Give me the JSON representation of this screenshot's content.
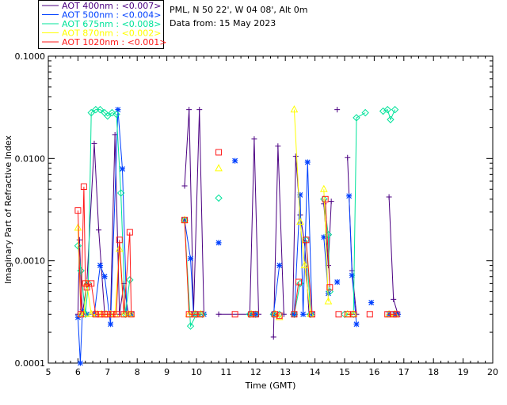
{
  "chart_data": {
    "type": "scatter",
    "header": {
      "site": "PML, N 50 22', W 04 08', Alt 0m",
      "date": "Data from: 15 May 2023"
    },
    "xlabel": "Time (GMT)",
    "ylabel": "Imaginary Part of Refractive Index",
    "xlim": [
      5,
      20
    ],
    "ylim": [
      0.0001,
      0.1
    ],
    "yscale": "log",
    "x_ticks": [
      "5",
      "6",
      "7",
      "8",
      "9",
      "10",
      "11",
      "12",
      "13",
      "14",
      "15",
      "16",
      "17",
      "18",
      "19",
      "20"
    ],
    "y_ticks": [
      "0.0001",
      "0.0010",
      "0.0100",
      "0.1000"
    ],
    "legend_position": "top-left, outside plot",
    "series": [
      {
        "name": "AOT  400nm : <0.007>",
        "color": "#4b0082",
        "marker": "plus",
        "segments": [
          [
            [
              6.0,
              0.0003
            ],
            [
              6.05,
              0.0016
            ],
            [
              6.15,
              0.0003
            ],
            [
              6.3,
              0.0006
            ],
            [
              6.55,
              0.014
            ],
            [
              6.7,
              0.002
            ],
            [
              6.9,
              0.0003
            ],
            [
              7.1,
              0.0003
            ],
            [
              7.25,
              0.017
            ],
            [
              7.4,
              0.0003
            ],
            [
              7.55,
              0.0006
            ],
            [
              7.7,
              0.0003
            ],
            [
              7.8,
              0.0003
            ]
          ],
          [
            [
              9.6,
              0.0054
            ],
            [
              9.75,
              0.03
            ],
            [
              9.9,
              0.0003
            ],
            [
              10.1,
              0.03
            ],
            [
              10.25,
              0.0003
            ]
          ],
          [
            [
              10.75,
              0.0003
            ],
            [
              11.8,
              0.0003
            ],
            [
              11.95,
              0.0155
            ],
            [
              12.1,
              0.0003
            ]
          ],
          [
            [
              12.6,
              0.00018
            ],
            [
              12.75,
              0.0132
            ],
            [
              12.95,
              0.0003
            ]
          ],
          [
            [
              13.25,
              0.0003
            ],
            [
              13.35,
              0.0105
            ],
            [
              13.5,
              0.0028
            ],
            [
              13.65,
              0.0015
            ],
            [
              13.8,
              0.0003
            ]
          ],
          [
            [
              14.3,
              0.0036
            ],
            [
              14.45,
              0.0009
            ],
            [
              14.55,
              0.0038
            ]
          ],
          [
            [
              14.75,
              0.03
            ]
          ],
          [
            [
              15.1,
              0.0102
            ],
            [
              15.25,
              0.0008
            ],
            [
              15.4,
              0.0003
            ]
          ],
          [
            [
              16.5,
              0.0042
            ],
            [
              16.65,
              0.00042
            ],
            [
              16.8,
              0.0003
            ]
          ]
        ]
      },
      {
        "name": "AOT  500nm : <0.004>",
        "color": "#0040ff",
        "marker": "star",
        "segments": [
          [
            [
              6.0,
              0.00028
            ],
            [
              6.08,
              0.0001
            ],
            [
              6.15,
              0.00032
            ],
            [
              6.3,
              0.0003
            ],
            [
              6.55,
              0.0003
            ],
            [
              6.75,
              0.0009
            ],
            [
              6.9,
              0.0007
            ],
            [
              7.1,
              0.00024
            ],
            [
              7.35,
              0.03
            ],
            [
              7.5,
              0.0079
            ],
            [
              7.65,
              0.0003
            ],
            [
              7.8,
              0.0003
            ]
          ],
          [
            [
              9.6,
              0.0025
            ],
            [
              9.8,
              0.00105
            ],
            [
              9.9,
              0.0003
            ],
            [
              10.05,
              0.0003
            ],
            [
              10.25,
              0.0003
            ]
          ],
          [
            [
              10.75,
              0.0015
            ]
          ],
          [
            [
              11.3,
              0.0095
            ]
          ],
          [
            [
              11.85,
              0.0003
            ],
            [
              12.0,
              0.0003
            ]
          ],
          [
            [
              12.6,
              0.0003
            ],
            [
              12.8,
              0.0009
            ]
          ],
          [
            [
              13.3,
              0.0003
            ],
            [
              13.5,
              0.0044
            ],
            [
              13.6,
              0.0003
            ],
            [
              13.75,
              0.0092
            ],
            [
              13.9,
              0.0003
            ]
          ],
          [
            [
              14.3,
              0.0017
            ],
            [
              14.45,
              0.00048
            ]
          ],
          [
            [
              14.75,
              0.00062
            ]
          ],
          [
            [
              15.15,
              0.0043
            ],
            [
              15.25,
              0.00072
            ],
            [
              15.4,
              0.00024
            ]
          ],
          [
            [
              15.9,
              0.00039
            ]
          ],
          [
            [
              16.5,
              0.0003
            ],
            [
              16.7,
              0.0003
            ],
            [
              16.8,
              0.0003
            ]
          ]
        ]
      },
      {
        "name": "AOT  675nm : <0.008>",
        "color": "#00e39a",
        "marker": "diamond",
        "segments": [
          [
            [
              6.0,
              0.0014
            ],
            [
              6.1,
              0.0008
            ],
            [
              6.25,
              0.0003
            ],
            [
              6.35,
              0.0006
            ],
            [
              6.45,
              0.028
            ],
            [
              6.6,
              0.03
            ],
            [
              6.75,
              0.03
            ],
            [
              6.9,
              0.028
            ],
            [
              7.0,
              0.026
            ],
            [
              7.15,
              0.028
            ],
            [
              7.3,
              0.027
            ],
            [
              7.45,
              0.0046
            ],
            [
              7.6,
              0.0003
            ],
            [
              7.75,
              0.00065
            ]
          ],
          [
            [
              9.6,
              0.0025
            ],
            [
              9.8,
              0.00023
            ],
            [
              10.0,
              0.0003
            ],
            [
              10.2,
              0.0003
            ]
          ],
          [
            [
              10.75,
              0.0041
            ]
          ],
          [
            [
              11.8,
              0.0003
            ],
            [
              12.0,
              0.0003
            ]
          ],
          [
            [
              12.6,
              0.0003
            ],
            [
              12.8,
              0.0003
            ]
          ],
          [
            [
              13.3,
              0.0003
            ],
            [
              13.5,
              0.0006
            ]
          ],
          [
            [
              13.7,
              0.0016
            ],
            [
              13.85,
              0.0003
            ]
          ],
          [
            [
              14.3,
              0.004
            ],
            [
              14.45,
              0.0018
            ],
            [
              14.5,
              0.0005
            ]
          ],
          [
            [
              15.0,
              0.0003
            ],
            [
              15.3,
              0.0003
            ],
            [
              15.4,
              0.025
            ],
            [
              15.7,
              0.028
            ]
          ],
          [
            [
              16.3,
              0.029
            ],
            [
              16.45,
              0.03
            ],
            [
              16.55,
              0.024
            ],
            [
              16.7,
              0.03
            ]
          ]
        ]
      },
      {
        "name": "AOT  870nm : <0.002>",
        "color": "#ffff00",
        "marker": "triangle",
        "segments": [
          [
            [
              6.0,
              0.0021
            ],
            [
              6.1,
              0.0003
            ],
            [
              6.2,
              0.0003
            ],
            [
              6.3,
              0.0006
            ],
            [
              6.45,
              0.0003
            ],
            [
              6.65,
              0.0003
            ],
            [
              6.8,
              0.0003
            ],
            [
              6.95,
              0.0003
            ],
            [
              7.1,
              0.0003
            ],
            [
              7.25,
              0.0003
            ],
            [
              7.4,
              0.0013
            ],
            [
              7.55,
              0.0003
            ],
            [
              7.7,
              0.0003
            ],
            [
              7.8,
              0.0003
            ]
          ],
          [
            [
              9.6,
              0.0025
            ],
            [
              9.75,
              0.0003
            ],
            [
              9.95,
              0.0003
            ],
            [
              10.15,
              0.0003
            ]
          ],
          [
            [
              10.75,
              0.008
            ]
          ],
          [
            [
              11.85,
              0.0003
            ]
          ],
          [
            [
              12.65,
              0.0003
            ],
            [
              12.8,
              0.00028
            ]
          ],
          [
            [
              13.3,
              0.03
            ],
            [
              13.5,
              0.0024
            ],
            [
              13.65,
              0.0009
            ],
            [
              13.85,
              0.0003
            ]
          ],
          [
            [
              14.3,
              0.005
            ],
            [
              14.45,
              0.0004
            ]
          ],
          [
            [
              15.1,
              0.0003
            ],
            [
              15.3,
              0.0003
            ]
          ],
          [
            [
              16.5,
              0.0003
            ],
            [
              16.7,
              0.0003
            ]
          ]
        ]
      },
      {
        "name": "AOT 1020nm : <0.001>",
        "color": "#ff1a1a",
        "marker": "square",
        "segments": [
          [
            [
              6.0,
              0.0031
            ],
            [
              6.1,
              0.0003
            ],
            [
              6.2,
              0.0053
            ],
            [
              6.25,
              0.0006
            ],
            [
              6.3,
              0.00055
            ],
            [
              6.45,
              0.0006
            ],
            [
              6.6,
              0.0003
            ],
            [
              6.75,
              0.0003
            ],
            [
              6.9,
              0.0003
            ],
            [
              7.0,
              0.0003
            ],
            [
              7.15,
              0.0003
            ],
            [
              7.3,
              0.0003
            ],
            [
              7.4,
              0.0016
            ],
            [
              7.55,
              0.0003
            ],
            [
              7.75,
              0.0019
            ],
            [
              7.8,
              0.0003
            ]
          ],
          [
            [
              9.6,
              0.0025
            ],
            [
              9.75,
              0.0003
            ],
            [
              9.95,
              0.0003
            ],
            [
              10.15,
              0.0003
            ]
          ],
          [
            [
              10.75,
              0.0115
            ]
          ],
          [
            [
              11.3,
              0.0003
            ]
          ],
          [
            [
              11.85,
              0.0003
            ],
            [
              12.0,
              0.0003
            ]
          ],
          [
            [
              12.65,
              0.0003
            ],
            [
              12.8,
              0.00029
            ]
          ],
          [
            [
              13.3,
              0.0003
            ],
            [
              13.45,
              0.00062
            ]
          ],
          [
            [
              13.7,
              0.0016
            ],
            [
              13.9,
              0.0003
            ]
          ],
          [
            [
              14.35,
              0.004
            ],
            [
              14.5,
              0.00055
            ]
          ],
          [
            [
              14.8,
              0.0003
            ]
          ],
          [
            [
              15.1,
              0.0003
            ],
            [
              15.3,
              0.0003
            ]
          ],
          [
            [
              15.85,
              0.0003
            ]
          ],
          [
            [
              16.45,
              0.0003
            ],
            [
              16.65,
              0.0003
            ],
            [
              16.75,
              0.0003
            ]
          ]
        ]
      }
    ]
  }
}
